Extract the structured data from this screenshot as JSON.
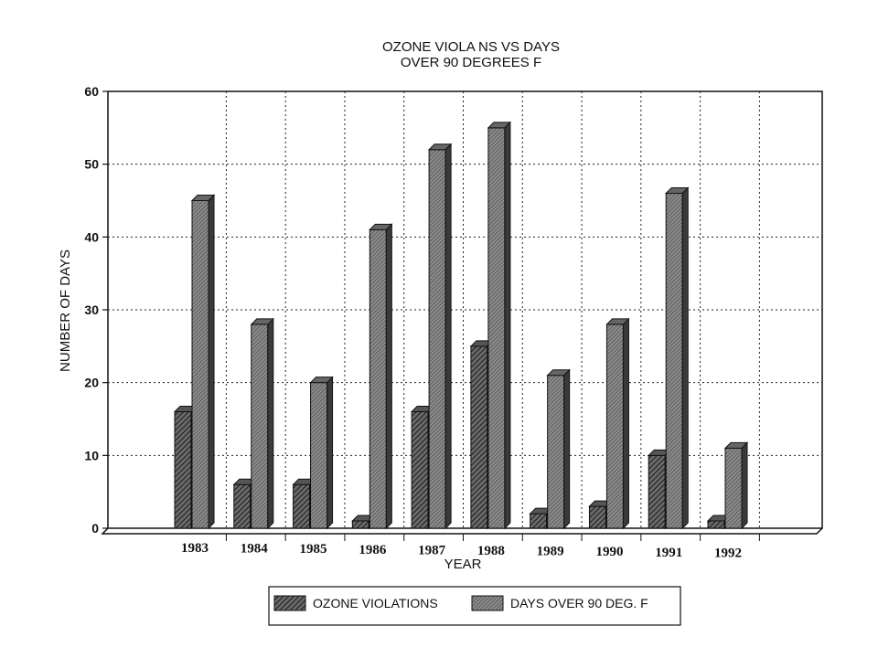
{
  "chart_data": {
    "type": "bar",
    "title_line1": "OZONE VIOLA    NS VS DAYS",
    "title_line2": "OVER 90 DEGREES F",
    "xlabel": "YEAR",
    "ylabel": "NUMBER OF DAYS",
    "categories": [
      "1983",
      "1984",
      "1985",
      "1986",
      "1987",
      "1988",
      "1989",
      "1990",
      "1991",
      "1992"
    ],
    "series": [
      {
        "name": "OZONE VIOLATIONS",
        "values": [
          16,
          6,
          6,
          1,
          16,
          25,
          2,
          3,
          10,
          1
        ]
      },
      {
        "name": "DAYS OVER 90 DEG. F",
        "values": [
          45,
          28,
          20,
          41,
          52,
          55,
          21,
          28,
          46,
          11
        ]
      }
    ],
    "yticks": [
      "0",
      "10",
      "20",
      "30",
      "40",
      "50",
      "60"
    ],
    "ylim": [
      0,
      60
    ],
    "grid": true,
    "legend_position": "bottom"
  }
}
